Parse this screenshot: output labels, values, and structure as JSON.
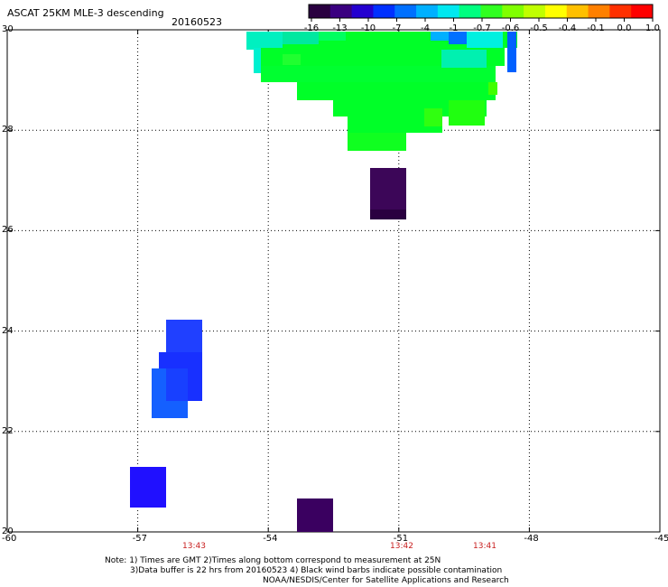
{
  "header": {
    "title": "ASCAT 25KM MLE-3 descending",
    "date": "20160523"
  },
  "colorbar": {
    "ticks": [
      "-16",
      "-13",
      "-10",
      "-7",
      "-4",
      "-1",
      "-0.7",
      "-0.6",
      "-0.5",
      "-0.4",
      "-0.1",
      "0.0",
      "1.0"
    ],
    "colors": [
      "#2a0040",
      "#3a0080",
      "#2400d0",
      "#0030ff",
      "#0070ff",
      "#00b0ff",
      "#00e8f0",
      "#00ff80",
      "#30ff20",
      "#80ff00",
      "#c0ff00",
      "#ffff00",
      "#ffc000",
      "#ff8000",
      "#ff3000",
      "#ff0000"
    ]
  },
  "map": {
    "lon_ticks": [
      "-60",
      "-57",
      "-54",
      "-51",
      "-48",
      "-45"
    ],
    "lat_ticks": [
      "20",
      "22",
      "24",
      "26",
      "28",
      "30"
    ],
    "grid_lons": [
      -57,
      -54,
      -51,
      -48
    ],
    "grid_lats": [
      22,
      24,
      26,
      28
    ],
    "lon_range": [
      -60,
      -45
    ],
    "lat_range": [
      20,
      30
    ]
  },
  "times": [
    "13:43",
    "13:42",
    "13:41"
  ],
  "notes": [
    "Note: 1) Times are GMT 2)Times along bottom correspond to measurement at 25N",
    "3)Data buffer is 22 hrs from 20160523 4) Black wind barbs indicate possible contamination",
    "NOAA/NESDIS/Center for Satellite Applications and Research"
  ]
}
